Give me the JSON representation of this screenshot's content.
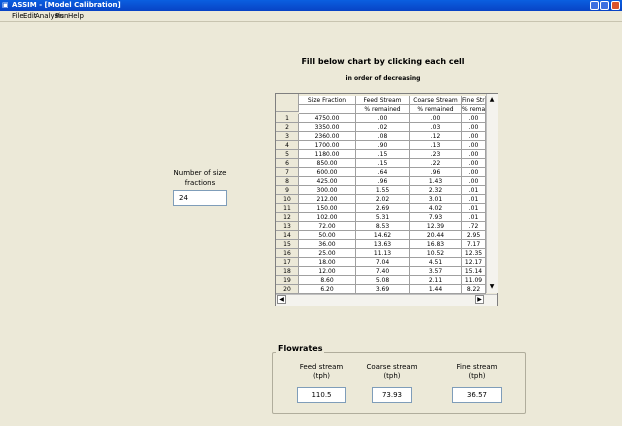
{
  "window": {
    "title": "ASSIM - [Model Calibration]"
  },
  "menu": [
    "File",
    "Edit",
    "Analysis",
    "Run",
    "Help"
  ],
  "heading": "Fill below chart by clicking each cell",
  "subheading": "in order of decreasing",
  "size_fractions": {
    "label": "Number of size fractions",
    "value": "24"
  },
  "table": {
    "columns": [
      "Size Fraction",
      "Feed Stream",
      "Coarse Stream",
      "Fine Stream"
    ],
    "units": [
      "% remained",
      "% remained",
      "% remained"
    ],
    "rows": [
      [
        "1",
        "4750.00",
        ".00",
        ".00",
        ".00"
      ],
      [
        "2",
        "3350.00",
        ".02",
        ".03",
        ".00"
      ],
      [
        "3",
        "2360.00",
        ".08",
        ".12",
        ".00"
      ],
      [
        "4",
        "1700.00",
        ".90",
        ".13",
        ".00"
      ],
      [
        "5",
        "1180.00",
        ".15",
        ".23",
        ".00"
      ],
      [
        "6",
        "850.00",
        ".15",
        ".22",
        ".00"
      ],
      [
        "7",
        "600.00",
        ".64",
        ".96",
        ".00"
      ],
      [
        "8",
        "425.00",
        ".96",
        "1.43",
        ".00"
      ],
      [
        "9",
        "300.00",
        "1.55",
        "2.32",
        ".01"
      ],
      [
        "10",
        "212.00",
        "2.02",
        "3.01",
        ".01"
      ],
      [
        "11",
        "150.00",
        "2.69",
        "4.02",
        ".01"
      ],
      [
        "12",
        "102.00",
        "5.31",
        "7.93",
        ".01"
      ],
      [
        "13",
        "72.00",
        "8.53",
        "12.39",
        ".72"
      ],
      [
        "14",
        "50.00",
        "14.62",
        "20.44",
        "2.95"
      ],
      [
        "15",
        "36.00",
        "13.63",
        "16.83",
        "7.17"
      ],
      [
        "16",
        "25.00",
        "11.13",
        "10.52",
        "12.35"
      ],
      [
        "17",
        "18.00",
        "7.04",
        "4.51",
        "12.17"
      ],
      [
        "18",
        "12.00",
        "7.40",
        "3.57",
        "15.14"
      ],
      [
        "19",
        "8.60",
        "5.08",
        "2.11",
        "11.09"
      ],
      [
        "20",
        "6.20",
        "3.69",
        "1.44",
        "8.22"
      ]
    ]
  },
  "flowrates": {
    "title": "Flowrates",
    "streams": [
      {
        "label": "Feed stream",
        "unit": "(tph)",
        "value": "110.5"
      },
      {
        "label": "Coarse stream",
        "unit": "(tph)",
        "value": "73.93"
      },
      {
        "label": "Fine stream",
        "unit": "(tph)",
        "value": "36.57"
      }
    ]
  }
}
